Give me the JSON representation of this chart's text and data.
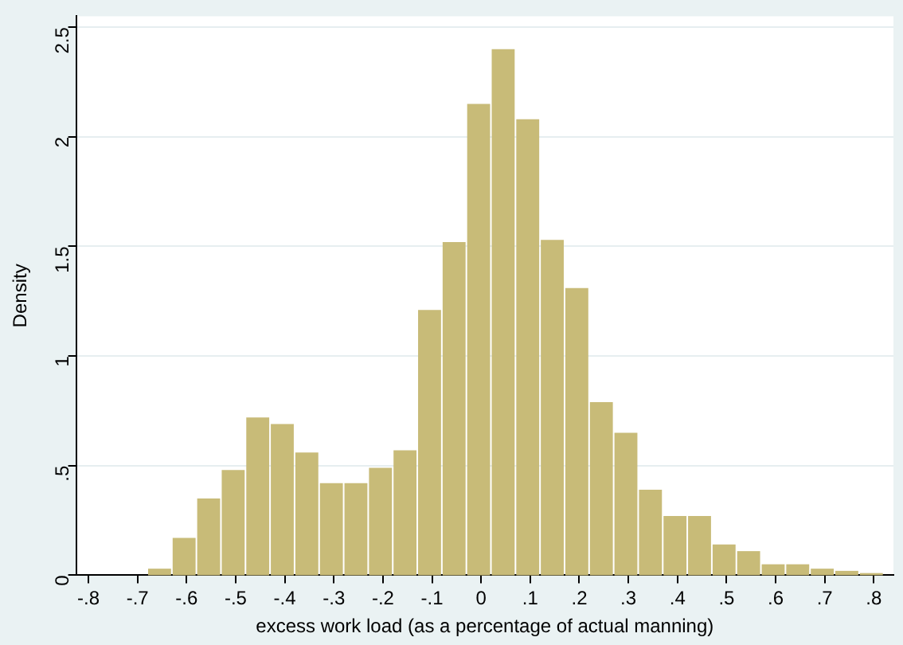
{
  "chart_data": {
    "type": "histogram",
    "xlabel": "excess work load (as a percentage of actual manning)",
    "ylabel": "Density",
    "bins": [
      -0.68,
      -0.63,
      -0.58,
      -0.53,
      -0.48,
      -0.43,
      -0.38,
      -0.33,
      -0.28,
      -0.23,
      -0.18,
      -0.13,
      -0.08,
      -0.03,
      0.02,
      0.07,
      0.12,
      0.17,
      0.22,
      0.27,
      0.32,
      0.37,
      0.42,
      0.47,
      0.52,
      0.57,
      0.62,
      0.67,
      0.72,
      0.77,
      0.82
    ],
    "values": [
      0.03,
      0.17,
      0.35,
      0.48,
      0.72,
      0.69,
      0.56,
      0.42,
      0.42,
      0.49,
      0.57,
      1.21,
      1.52,
      2.15,
      2.4,
      2.08,
      1.53,
      1.31,
      0.79,
      0.65,
      0.39,
      0.27,
      0.27,
      0.14,
      0.11,
      0.05,
      0.05,
      0.03,
      0.02,
      0.01
    ],
    "color": "#c8bb78",
    "xlim": [
      -0.825,
      0.84
    ],
    "xticks": [
      {
        "value": -0.8,
        "label": "-.8"
      },
      {
        "value": -0.7,
        "label": "-.7"
      },
      {
        "value": -0.6,
        "label": "-.6"
      },
      {
        "value": -0.5,
        "label": "-.5"
      },
      {
        "value": -0.4,
        "label": "-.4"
      },
      {
        "value": -0.3,
        "label": "-.3"
      },
      {
        "value": -0.2,
        "label": "-.2"
      },
      {
        "value": -0.1,
        "label": "-.1"
      },
      0,
      {
        "value": 0.1,
        "label": ".1"
      },
      {
        "value": 0.2,
        "label": ".2"
      },
      {
        "value": 0.3,
        "label": ".3"
      },
      {
        "value": 0.4,
        "label": ".4"
      },
      {
        "value": 0.5,
        "label": ".5"
      },
      {
        "value": 0.6,
        "label": ".6"
      },
      {
        "value": 0.7,
        "label": ".7"
      },
      {
        "value": 0.8,
        "label": ".8"
      }
    ],
    "ylim": [
      0,
      2.55
    ],
    "yticks": [
      0,
      {
        "value": 0.5,
        "label": ".5"
      },
      1,
      1.5,
      2,
      2.5
    ],
    "grid": "y"
  }
}
